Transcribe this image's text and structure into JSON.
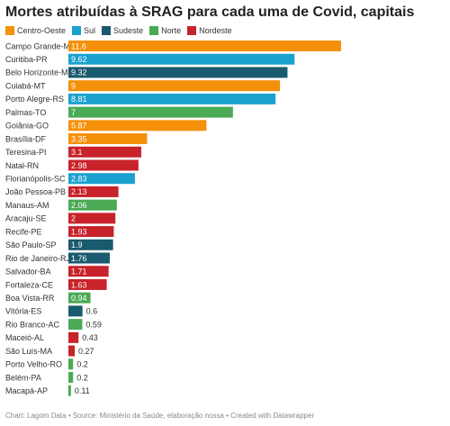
{
  "title": "Mortes atribuídas à SRAG para cada uma de Covid, capitais",
  "footer": "Chart: Lagom Data • Source: Ministério da Saúde, elaboração nossa • Created with Datawrapper",
  "legend": [
    {
      "label": "Centro-Oeste",
      "color": "#f5900a"
    },
    {
      "label": "Sul",
      "color": "#1ba1cf"
    },
    {
      "label": "Sudeste",
      "color": "#1a5a6e"
    },
    {
      "label": "Norte",
      "color": "#4aaa55"
    },
    {
      "label": "Nordeste",
      "color": "#c8222a"
    }
  ],
  "chart_data": {
    "type": "bar",
    "orientation": "horizontal",
    "xlim": [
      0,
      11.6
    ],
    "categories": [
      "Campo Grande-MS",
      "Curitiba-PR",
      "Belo Horizonte-MG",
      "Cuiabá-MT",
      "Porto Alegre-RS",
      "Palmas-TO",
      "Goiânia-GO",
      "Brasília-DF",
      "Teresina-PI",
      "Natal-RN",
      "Florianópolis-SC",
      "João Pessoa-PB",
      "Manaus-AM",
      "Aracaju-SE",
      "Recife-PE",
      "São Paulo-SP",
      "Rio de Janeiro-RJ",
      "Salvador-BA",
      "Fortaleza-CE",
      "Boa Vista-RR",
      "Vitória-ES",
      "Rio Branco-AC",
      "Maceió-AL",
      "São Luís-MA",
      "Porto Velho-RO",
      "Belém-PA",
      "Macapá-AP"
    ],
    "values": [
      11.6,
      9.62,
      9.32,
      9,
      8.81,
      7,
      5.87,
      3.35,
      3.1,
      2.98,
      2.83,
      2.13,
      2.06,
      2,
      1.93,
      1.9,
      1.76,
      1.71,
      1.63,
      0.94,
      0.6,
      0.59,
      0.43,
      0.27,
      0.2,
      0.2,
      0.11
    ],
    "value_labels": [
      "11.6",
      "9.62",
      "9.32",
      "9",
      "8.81",
      "7",
      "5.87",
      "3.35",
      "3.1",
      "2.98",
      "2.83",
      "2.13",
      "2.06",
      "2",
      "1.93",
      "1.9",
      "1.76",
      "1.71",
      "1.63",
      "0.94",
      "0.6",
      "0.59",
      "0.43",
      "0.27",
      "0.2",
      "0.2",
      "0.11"
    ],
    "regions": [
      "Centro-Oeste",
      "Sul",
      "Sudeste",
      "Centro-Oeste",
      "Sul",
      "Norte",
      "Centro-Oeste",
      "Centro-Oeste",
      "Nordeste",
      "Nordeste",
      "Sul",
      "Nordeste",
      "Norte",
      "Nordeste",
      "Nordeste",
      "Sudeste",
      "Sudeste",
      "Nordeste",
      "Nordeste",
      "Norte",
      "Sudeste",
      "Norte",
      "Nordeste",
      "Nordeste",
      "Norte",
      "Norte",
      "Norte"
    ]
  }
}
